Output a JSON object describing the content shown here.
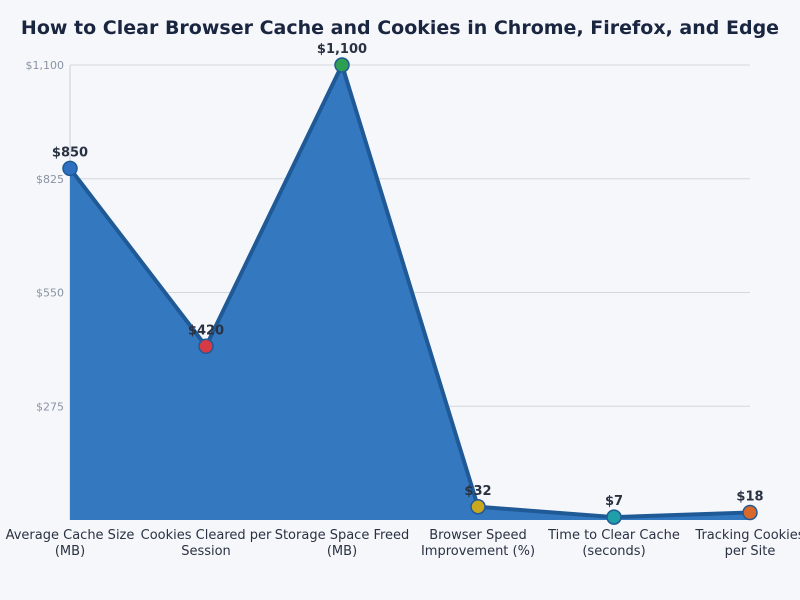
{
  "chart_data": {
    "type": "area",
    "title": "How to Clear Browser Cache and Cookies in Chrome, Firefox, and Edge",
    "xlabel": "",
    "ylabel": "",
    "categories": [
      [
        "Average Cache Size",
        "(MB)"
      ],
      [
        "Cookies Cleared per",
        "Session"
      ],
      [
        "Storage Space Freed",
        "(MB)"
      ],
      [
        "Browser Speed",
        "Improvement (%)"
      ],
      [
        "Time to Clear Cache",
        "(seconds)"
      ],
      [
        "Tracking Cookies",
        "per Site"
      ]
    ],
    "values": [
      850,
      420,
      1100,
      32,
      7,
      18
    ],
    "data_labels": [
      "$850",
      "$420",
      "$1,100",
      "$32",
      "$7",
      "$18"
    ],
    "point_colors": [
      "#2f6fbf",
      "#d63b45",
      "#2e9e52",
      "#c9a81f",
      "#1fa0a8",
      "#d9692a"
    ],
    "yticks": [
      275,
      550,
      825,
      1100
    ],
    "ytick_labels": [
      "$275",
      "$550",
      "$825",
      "$1,100"
    ],
    "ylim": [
      0,
      1100
    ],
    "grid": true,
    "fill_color": "#3478c0",
    "line_color": "#1f5a96"
  }
}
